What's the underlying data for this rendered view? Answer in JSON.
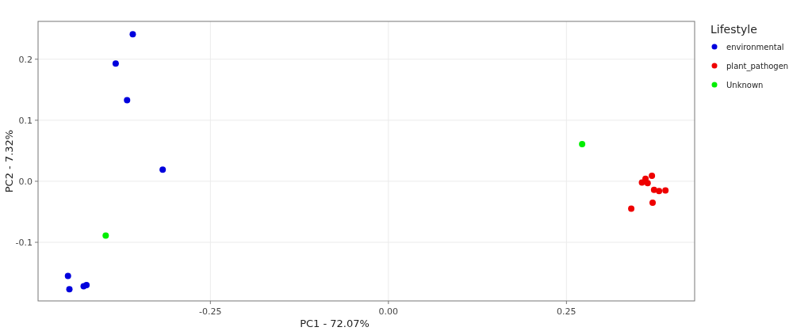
{
  "chart_data": {
    "type": "scatter",
    "xlabel": "PC1 - 72.07%",
    "ylabel": "PC2 - 7.32%",
    "legend_title": "Lifestyle",
    "legend": "top right",
    "grid": true,
    "marker": "circle",
    "xlim": [
      -0.492,
      0.43
    ],
    "ylim": [
      -0.196,
      0.262
    ],
    "xticks": [
      {
        "value": -0.25,
        "label": "-0.25"
      },
      {
        "value": 0,
        "label": "0.00"
      },
      {
        "value": 0.25,
        "label": "0.25"
      }
    ],
    "yticks": [
      {
        "value": -0.1,
        "label": "-0.1"
      },
      {
        "value": 0,
        "label": "0.0"
      },
      {
        "value": 0.1,
        "label": "0.1"
      },
      {
        "value": 0.2,
        "label": "0.2"
      }
    ],
    "series": [
      {
        "name": "environmental",
        "color": "#0000dd",
        "x": [
          -0.359,
          -0.383,
          -0.367,
          -0.317,
          -0.45,
          -0.448,
          -0.428,
          -0.424
        ],
        "values": [
          0.241,
          0.193,
          0.133,
          0.019,
          -0.155,
          -0.177,
          -0.172,
          -0.17
        ]
      },
      {
        "name": "plant_pathogen",
        "color": "#ee0000",
        "x": [
          0.37,
          0.361,
          0.356,
          0.364,
          0.373,
          0.38,
          0.389,
          0.371,
          0.341
        ],
        "values": [
          0.009,
          0.004,
          -0.002,
          -0.003,
          -0.014,
          -0.016,
          -0.015,
          -0.035,
          -0.045
        ]
      },
      {
        "name": "Unknown",
        "color": "#00ee00",
        "x": [
          -0.397,
          0.272
        ],
        "values": [
          -0.089,
          0.061
        ]
      }
    ]
  }
}
